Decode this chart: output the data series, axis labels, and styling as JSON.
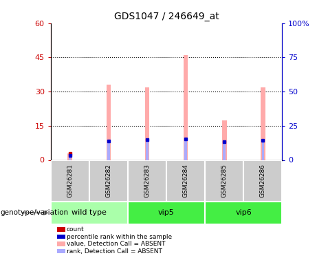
{
  "title": "GDS1047 / 246649_at",
  "samples": [
    "GSM26281",
    "GSM26282",
    "GSM26283",
    "GSM26284",
    "GSM26285",
    "GSM26286"
  ],
  "value_bars": [
    3.0,
    33.0,
    32.0,
    46.0,
    17.5,
    32.0
  ],
  "rank_bars": [
    3.5,
    14.0,
    15.0,
    15.5,
    13.5,
    14.5
  ],
  "count_values": [
    3.0,
    null,
    null,
    null,
    null,
    null
  ],
  "ylim_left": [
    0,
    60
  ],
  "ylim_right": [
    0,
    100
  ],
  "yticks_left": [
    0,
    15,
    30,
    45,
    60
  ],
  "ytick_labels_left": [
    "0",
    "15",
    "30",
    "45",
    "60"
  ],
  "yticks_right": [
    0,
    25,
    50,
    75,
    100
  ],
  "ytick_labels_right": [
    "0",
    "25",
    "50",
    "75",
    "100%"
  ],
  "left_axis_color": "#cc0000",
  "right_axis_color": "#0000cc",
  "bar_color_value": "#ffaaaa",
  "bar_color_rank": "#aaaaff",
  "count_color": "#cc0000",
  "rank_dot_color": "#0000cc",
  "sample_box_color": "#cccccc",
  "group_configs": [
    {
      "name": "wild type",
      "start": 0,
      "end": 1,
      "color": "#aaffaa"
    },
    {
      "name": "vip5",
      "start": 2,
      "end": 3,
      "color": "#44ee44"
    },
    {
      "name": "vip6",
      "start": 4,
      "end": 5,
      "color": "#44ee44"
    }
  ],
  "legend_items": [
    {
      "label": "count",
      "color": "#cc0000"
    },
    {
      "label": "percentile rank within the sample",
      "color": "#0000cc"
    },
    {
      "label": "value, Detection Call = ABSENT",
      "color": "#ffaaaa"
    },
    {
      "label": "rank, Detection Call = ABSENT",
      "color": "#aaaaff"
    }
  ],
  "genotype_label": "genotype/variation"
}
